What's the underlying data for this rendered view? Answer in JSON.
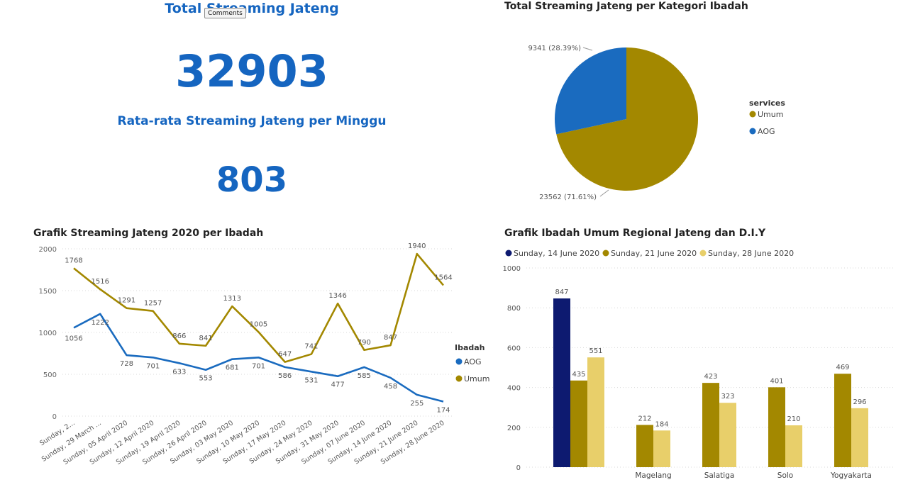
{
  "comments_button": "Comments",
  "kpi": {
    "total_title": "Total Streaming Jateng",
    "total_value": "32903",
    "avg_title": "Rata-rata Streaming Jateng per Minggu",
    "avg_value": "803"
  },
  "colors": {
    "aog": "#1a6bbf",
    "umum": "#a38800",
    "navy": "#0d1a70",
    "light_gold": "#e8cf6a",
    "kpi": "#1565c0"
  },
  "chart_data": [
    {
      "type": "pie",
      "title": "Total Streaming Jateng per Kategori Ibadah",
      "legend_title": "services",
      "legend_position": "right",
      "slices": [
        {
          "name": "Umum",
          "value": 23562,
          "label": "23562 (71.61%)",
          "color": "#a38800"
        },
        {
          "name": "AOG",
          "value": 9341,
          "label": "9341 (28.39%)",
          "color": "#1a6bbf"
        }
      ]
    },
    {
      "type": "line",
      "title": "Grafik Streaming Jateng 2020 per Ibadah",
      "legend_title": "Ibadah",
      "legend_position": "right",
      "ylim": [
        0,
        2000
      ],
      "yticks": [
        0,
        500,
        1000,
        1500,
        2000
      ],
      "grid": true,
      "x": [
        "Sunday, 2...",
        "Sunday, 29 March ...",
        "Sunday, 05 April 2020",
        "Sunday, 12 April 2020",
        "Sunday, 19 April 2020",
        "Sunday, 26 April 2020",
        "Sunday, 03 May 2020",
        "Sunday, 10 May 2020",
        "Sunday, 17 May 2020",
        "Sunday, 24 May 2020",
        "Sunday, 31 May 2020",
        "Sunday, 07 June 2020",
        "Sunday, 14 June 2020",
        "Sunday, 21 June 2020",
        "Sunday, 28 June 2020"
      ],
      "series": [
        {
          "name": "AOG",
          "color": "#1a6bbf",
          "values": [
            1056,
            1222,
            728,
            701,
            633,
            553,
            681,
            701,
            586,
            531,
            477,
            585,
            458,
            255,
            174
          ]
        },
        {
          "name": "Umum",
          "color": "#a38800",
          "values": [
            1768,
            1516,
            1291,
            1257,
            866,
            841,
            1313,
            1005,
            647,
            741,
            1346,
            790,
            847,
            1940,
            1564
          ]
        }
      ]
    },
    {
      "type": "bar",
      "title": "Grafik Ibadah Umum Regional Jateng dan D.I.Y",
      "legend_position": "top",
      "ylim": [
        0,
        1000
      ],
      "yticks": [
        0,
        200,
        400,
        600,
        800,
        1000
      ],
      "grid": true,
      "categories": [
        "",
        "Magelang",
        "Salatiga",
        "Solo",
        "Yogyakarta"
      ],
      "series": [
        {
          "name": "Sunday, 14 June 2020",
          "color": "#0d1a70",
          "values": [
            847,
            null,
            null,
            null,
            null
          ]
        },
        {
          "name": "Sunday, 21 June 2020",
          "color": "#a38800",
          "values": [
            435,
            212,
            423,
            401,
            469
          ]
        },
        {
          "name": "Sunday, 28 June 2020",
          "color": "#e8cf6a",
          "values": [
            551,
            184,
            323,
            210,
            296
          ]
        }
      ]
    }
  ]
}
